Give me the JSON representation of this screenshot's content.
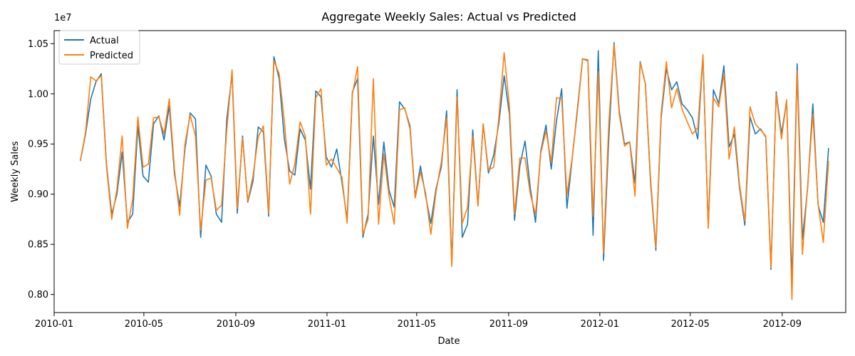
{
  "chart_data": {
    "type": "line",
    "title": "Aggregate Weekly Sales: Actual vs Predicted",
    "xlabel": "Date",
    "ylabel": "Weekly Sales",
    "y_offset_label": "1e7",
    "grid": false,
    "legend_position": "top-left",
    "xlim": [
      "2010-01-01",
      "2012-11-25"
    ],
    "ylim": [
      7820000.0,
      10630000.0
    ],
    "x_ticks": [
      "2010-01-01",
      "2010-05-01",
      "2010-09-01",
      "2011-01-01",
      "2011-05-01",
      "2011-09-01",
      "2012-01-01",
      "2012-05-01",
      "2012-09-01"
    ],
    "x_tick_labels": [
      "2010-01",
      "2010-05",
      "2010-09",
      "2011-01",
      "2011-05",
      "2011-09",
      "2012-01",
      "2012-05",
      "2012-09"
    ],
    "y_ticks": [
      8000000.0,
      8500000.0,
      9000000.0,
      9500000.0,
      10000000.0,
      10500000.0
    ],
    "y_tick_labels": [
      "0.80",
      "0.85",
      "0.90",
      "0.95",
      "1.00",
      "1.05"
    ],
    "x_start": "2010-02-05",
    "x_step_days": 7,
    "series": [
      {
        "name": "Actual",
        "color": "#1f77b4",
        "values": [
          9.33,
          9.6,
          9.95,
          10.12,
          10.2,
          9.3,
          8.8,
          9.0,
          9.42,
          8.72,
          8.8,
          9.68,
          9.18,
          9.12,
          9.7,
          9.78,
          9.54,
          9.88,
          9.2,
          8.88,
          9.45,
          9.81,
          9.75,
          8.57,
          9.29,
          9.18,
          8.8,
          8.72,
          9.75,
          10.2,
          8.81,
          9.58,
          8.92,
          9.13,
          9.67,
          9.62,
          8.78,
          10.37,
          10.15,
          9.55,
          9.23,
          9.19,
          9.65,
          9.54,
          9.05,
          10.03,
          9.97,
          9.37,
          9.27,
          9.45,
          9.12,
          8.75,
          10.02,
          10.15,
          8.57,
          8.8,
          9.58,
          8.9,
          9.52,
          9.04,
          8.87,
          9.92,
          9.85,
          9.68,
          8.97,
          9.28,
          8.98,
          8.71,
          9.06,
          9.27,
          9.83,
          8.3,
          10.04,
          8.57,
          8.7,
          9.64,
          8.89,
          9.7,
          9.21,
          9.39,
          9.71,
          10.18,
          9.8,
          8.74,
          9.28,
          9.53,
          9.06,
          8.72,
          9.43,
          9.69,
          9.25,
          9.73,
          10.05,
          8.86,
          9.35,
          9.85,
          10.35,
          10.33,
          8.59,
          10.43,
          8.34,
          9.55,
          10.51,
          9.83,
          9.5,
          9.52,
          9.11,
          10.32,
          10.1,
          9.1,
          8.44,
          9.76,
          10.25,
          10.04,
          10.12,
          9.9,
          9.84,
          9.76,
          9.55,
          10.38,
          8.68,
          10.04,
          9.9,
          10.28,
          9.47,
          9.6,
          9.06,
          8.69,
          9.77,
          9.6,
          9.65,
          9.57,
          8.25,
          10.02,
          9.6,
          9.93,
          8.12,
          10.3,
          8.55,
          9.06,
          9.9,
          8.89,
          8.72,
          9.46
        ]
      },
      {
        "name": "Predicted",
        "color": "#ff7f0e",
        "values": [
          9.33,
          9.62,
          10.17,
          10.13,
          10.18,
          9.28,
          8.75,
          9.05,
          9.58,
          8.66,
          8.95,
          9.77,
          9.27,
          9.3,
          9.76,
          9.77,
          9.6,
          9.95,
          9.25,
          8.79,
          9.5,
          9.79,
          9.58,
          8.64,
          9.14,
          9.16,
          8.84,
          8.89,
          9.64,
          10.24,
          8.86,
          9.56,
          8.93,
          9.18,
          9.57,
          9.68,
          8.81,
          10.33,
          10.2,
          9.73,
          9.1,
          9.3,
          9.72,
          9.58,
          8.8,
          9.96,
          10.05,
          9.29,
          9.35,
          9.26,
          9.17,
          8.71,
          10.0,
          10.27,
          8.6,
          8.75,
          10.15,
          8.7,
          9.4,
          8.98,
          8.7,
          9.84,
          9.86,
          9.65,
          8.96,
          9.22,
          9.01,
          8.6,
          9.03,
          9.32,
          9.76,
          8.28,
          9.97,
          8.71,
          8.87,
          9.58,
          8.88,
          9.7,
          9.24,
          9.27,
          9.77,
          10.41,
          9.88,
          8.8,
          9.36,
          9.36,
          9.0,
          8.8,
          9.41,
          9.63,
          9.32,
          9.96,
          9.95,
          8.99,
          9.36,
          9.82,
          10.35,
          10.34,
          8.78,
          10.22,
          8.41,
          9.7,
          10.49,
          9.8,
          9.48,
          9.52,
          8.98,
          10.31,
          10.1,
          9.14,
          8.47,
          9.8,
          10.32,
          9.86,
          10.05,
          9.85,
          9.72,
          9.6,
          9.66,
          10.39,
          8.66,
          9.96,
          9.87,
          10.2,
          9.35,
          9.67,
          9.09,
          8.73,
          9.87,
          9.7,
          9.64,
          9.58,
          8.27,
          10.0,
          9.55,
          9.94,
          7.95,
          10.23,
          8.4,
          9.08,
          9.8,
          8.9,
          8.52,
          9.33
        ]
      }
    ]
  }
}
